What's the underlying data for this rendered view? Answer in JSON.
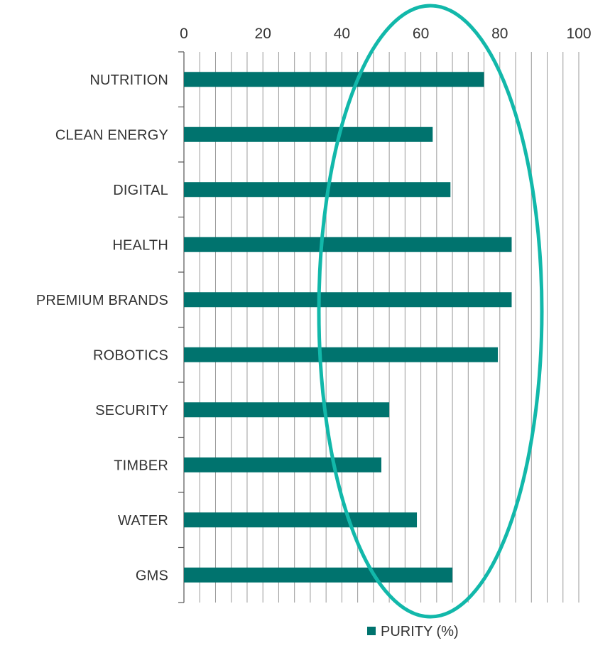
{
  "chart_data": {
    "type": "bar",
    "orientation": "horizontal",
    "categories": [
      "NUTRITION",
      "CLEAN ENERGY",
      "DIGITAL",
      "HEALTH",
      "PREMIUM BRANDS",
      "ROBOTICS",
      "SECURITY",
      "TIMBER",
      "WATER",
      "GMS"
    ],
    "series": [
      {
        "name": "PURITY (%)",
        "values": [
          76,
          63,
          67.5,
          83,
          83,
          79.5,
          52,
          50,
          59,
          68
        ]
      }
    ],
    "xlim": [
      0,
      100
    ],
    "xticks": [
      0,
      20,
      40,
      60,
      80,
      100
    ],
    "x_axis_position": "top",
    "grid": "vertical, every 4 units",
    "legend": "bottom-center",
    "annotation": "teal ellipse outline highlighting the region around 40–90"
  },
  "colors": {
    "bar": "#00736e",
    "ellipse": "#12b8aa",
    "grid": "#999999",
    "text": "#333333"
  }
}
